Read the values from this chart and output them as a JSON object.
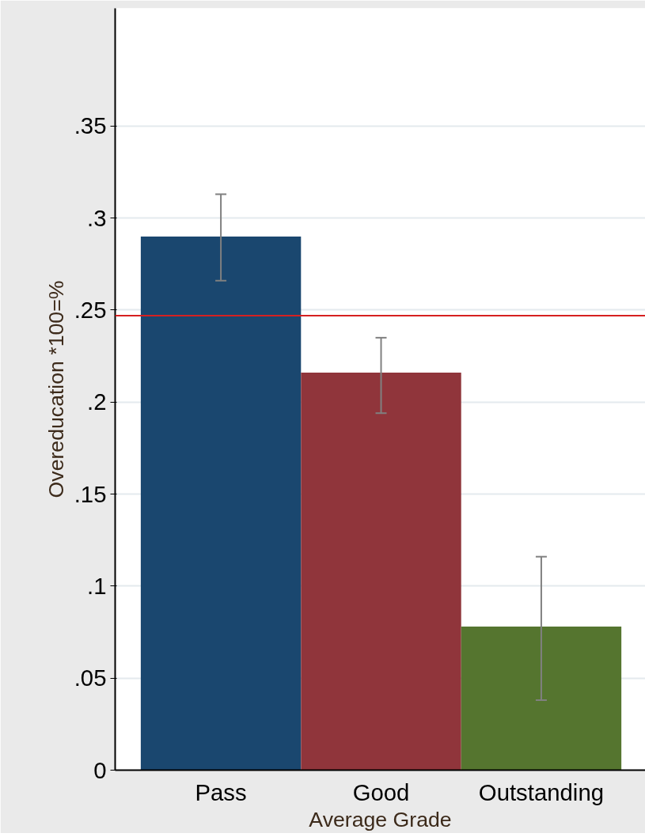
{
  "chart_data": {
    "type": "bar",
    "xlabel": "Average Grade",
    "ylabel": "Overeducation *100=%",
    "categories": [
      "Pass",
      "Good",
      "Outstanding"
    ],
    "values": [
      0.29,
      0.216,
      0.078
    ],
    "colors": [
      "#1a476f",
      "#90353b",
      "#55752f"
    ],
    "errors": [
      [
        0.266,
        0.313
      ],
      [
        0.194,
        0.235
      ],
      [
        0.038,
        0.116
      ]
    ],
    "ylim": [
      0,
      0.414
    ],
    "yticks": [
      0,
      {
        "value": 0.05,
        "label": ".05"
      },
      {
        "value": 0.1,
        "label": ".1"
      },
      {
        "value": 0.15,
        "label": ".15"
      },
      {
        "value": 0.2,
        "label": ".2"
      },
      {
        "value": 0.25,
        "label": ".25"
      },
      {
        "value": 0.3,
        "label": ".3"
      },
      {
        "value": 0.35,
        "label": ".35"
      }
    ],
    "ref_lines": [
      {
        "axis": "y",
        "value": 0.247,
        "color": "#d62020"
      }
    ],
    "grid": "y"
  }
}
